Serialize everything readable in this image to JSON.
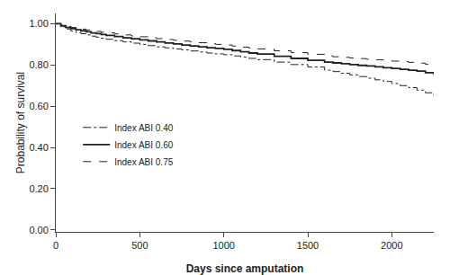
{
  "chart_data": {
    "type": "step",
    "xlabel": "Days since amputation",
    "ylabel": "Probability of survival",
    "xlim": [
      0,
      2250
    ],
    "ylim": [
      -0.01,
      1.05
    ],
    "xticks": [
      0,
      500,
      1000,
      1500,
      2000
    ],
    "yticks": [
      {
        "value": 0.0,
        "label": "0.00"
      },
      {
        "value": 0.2,
        "label": "0.20"
      },
      {
        "value": 0.4,
        "label": "0.40"
      },
      {
        "value": 0.6,
        "label": "0.60"
      },
      {
        "value": 0.8,
        "label": "0.80"
      },
      {
        "value": 1.0,
        "label": "1.00"
      }
    ],
    "grid": false,
    "legend": "left",
    "x": [
      0,
      30,
      60,
      90,
      120,
      150,
      180,
      210,
      240,
      270,
      300,
      350,
      400,
      450,
      500,
      550,
      600,
      650,
      700,
      750,
      800,
      850,
      900,
      950,
      1000,
      1050,
      1100,
      1150,
      1200,
      1300,
      1400,
      1500,
      1600,
      1650,
      1700,
      1750,
      1800,
      1850,
      1900,
      1950,
      2000,
      2050,
      2100,
      2150,
      2200,
      2250
    ],
    "series": [
      {
        "name": "Index ABI 0.40",
        "color": "#222222",
        "line_style": "dashdot",
        "values": [
          1.0,
          0.985,
          0.975,
          0.965,
          0.958,
          0.952,
          0.946,
          0.94,
          0.935,
          0.93,
          0.925,
          0.918,
          0.912,
          0.906,
          0.9,
          0.894,
          0.888,
          0.883,
          0.878,
          0.873,
          0.868,
          0.863,
          0.858,
          0.854,
          0.85,
          0.844,
          0.838,
          0.832,
          0.826,
          0.814,
          0.802,
          0.79,
          0.775,
          0.768,
          0.76,
          0.752,
          0.744,
          0.736,
          0.728,
          0.72,
          0.71,
          0.7,
          0.69,
          0.678,
          0.665,
          0.652
        ]
      },
      {
        "name": "Index ABI 0.60",
        "color": "#222222",
        "line_style": "solid",
        "values": [
          1.0,
          0.99,
          0.982,
          0.976,
          0.971,
          0.966,
          0.961,
          0.956,
          0.952,
          0.948,
          0.944,
          0.938,
          0.932,
          0.927,
          0.922,
          0.917,
          0.912,
          0.907,
          0.902,
          0.897,
          0.892,
          0.888,
          0.884,
          0.88,
          0.876,
          0.87,
          0.864,
          0.858,
          0.853,
          0.842,
          0.832,
          0.823,
          0.814,
          0.81,
          0.806,
          0.802,
          0.798,
          0.795,
          0.791,
          0.787,
          0.783,
          0.779,
          0.775,
          0.77,
          0.763,
          0.755
        ]
      },
      {
        "name": "Index ABI 0.75",
        "color": "#222222",
        "line_style": "dash",
        "values": [
          1.0,
          0.993,
          0.987,
          0.982,
          0.978,
          0.974,
          0.97,
          0.966,
          0.963,
          0.959,
          0.956,
          0.951,
          0.946,
          0.941,
          0.937,
          0.932,
          0.928,
          0.924,
          0.92,
          0.916,
          0.912,
          0.908,
          0.904,
          0.9,
          0.897,
          0.892,
          0.887,
          0.882,
          0.878,
          0.869,
          0.86,
          0.852,
          0.844,
          0.84,
          0.837,
          0.834,
          0.831,
          0.828,
          0.825,
          0.822,
          0.819,
          0.816,
          0.813,
          0.809,
          0.803,
          0.796
        ]
      }
    ]
  }
}
